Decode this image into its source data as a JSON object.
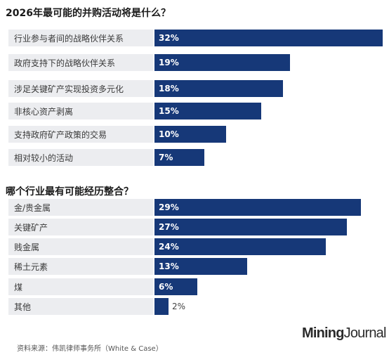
{
  "chart_data": [
    {
      "type": "bar",
      "orientation": "horizontal",
      "title": "2026年最可能的并购活动将是什么？",
      "categories": [
        "行业参与者间的战略伙伴关系",
        "政府支持下的战略伙伴关系",
        "涉足关键矿产实现投资多元化",
        "非核心资产剥离",
        "支持政府矿产政策的交易",
        "相对较小的活动"
      ],
      "values": [
        32,
        19,
        18,
        15,
        10,
        7
      ],
      "value_labels": [
        "32%",
        "19%",
        "18%",
        "15%",
        "10%",
        "7%"
      ],
      "unit": "%",
      "color": "#163878"
    },
    {
      "type": "bar",
      "orientation": "horizontal",
      "title": "哪个行业最有可能经历整合？",
      "categories": [
        "金/贵金属",
        "关键矿产",
        "贱金属",
        "稀土元素",
        "煤",
        "其他"
      ],
      "values": [
        29,
        27,
        24,
        13,
        6,
        2
      ],
      "value_labels": [
        "29%",
        "27%",
        "24%",
        "13%",
        "6%",
        "2%"
      ],
      "unit": "%",
      "color": "#163878"
    }
  ],
  "footer": {
    "source": "资料来源：伟凯律师事务所（White & Case）",
    "brand_part1": "Mining",
    "brand_part2": "Journal"
  }
}
